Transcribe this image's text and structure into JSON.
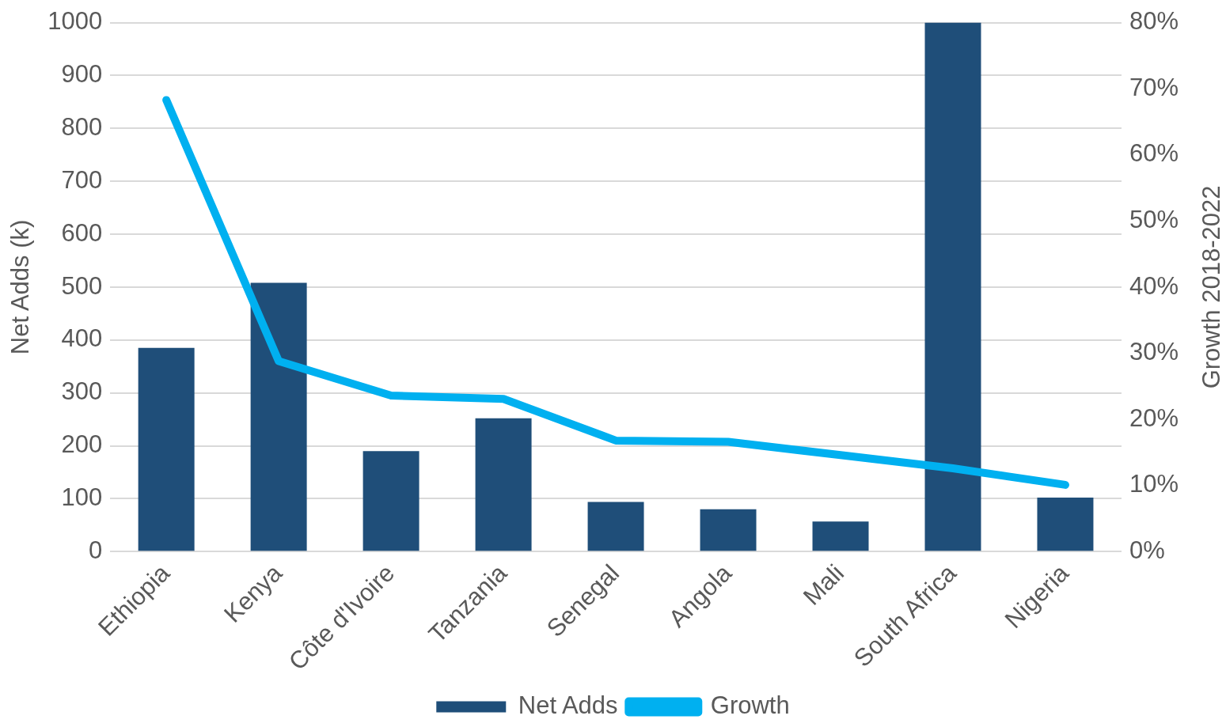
{
  "chart_data": {
    "type": "bar",
    "categories": [
      "Ethiopia",
      "Kenya",
      "Côte d'Ivoire",
      "Tanzania",
      "Senegal",
      "Angola",
      "Mali",
      "South Africa",
      "Nigeria"
    ],
    "series": [
      {
        "name": "Net Adds",
        "color": "#1f4e79",
        "values": [
          385,
          508,
          190,
          252,
          94,
          80,
          57,
          1000,
          102
        ]
      },
      {
        "name": "Growth",
        "type": "line",
        "axis": "y2",
        "color": "#00b0f0",
        "values": [
          68.3,
          28.8,
          23.6,
          23.1,
          16.8,
          16.6,
          14.6,
          12.6,
          10.1
        ]
      }
    ],
    "ylabel": "Net Adds (k)",
    "y2label": "Growth 2018-2022",
    "ylim": [
      0,
      1000
    ],
    "yticks": [
      0,
      100,
      200,
      300,
      400,
      500,
      600,
      700,
      800,
      900,
      1000
    ],
    "y2lim": [
      0,
      80
    ],
    "y2ticks": [
      {
        "value": 0,
        "label": "0%"
      },
      {
        "value": 10,
        "label": "10%"
      },
      {
        "value": 20,
        "label": "20%"
      },
      {
        "value": 30,
        "label": "30%"
      },
      {
        "value": 40,
        "label": "40%"
      },
      {
        "value": 50,
        "label": "50%"
      },
      {
        "value": 60,
        "label": "60%"
      },
      {
        "value": 70,
        "label": "70%"
      },
      {
        "value": 80,
        "label": "80%"
      }
    ],
    "grid": "y",
    "legend": "bottom",
    "marker": "none"
  }
}
